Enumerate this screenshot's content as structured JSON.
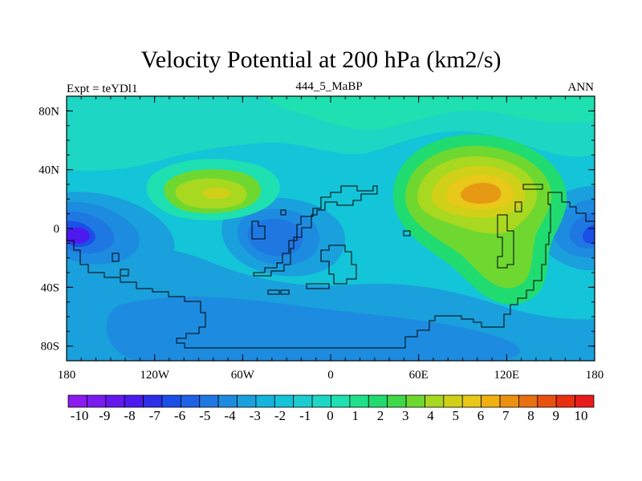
{
  "title": "Velocity Potential at 200 hPa (km2/s)",
  "left_label": "Expt = teYDl1",
  "center_label": "444_5_MaBP",
  "right_label": "ANN",
  "axes": {
    "x_ticks": [
      "180",
      "120W",
      "60W",
      "0",
      "60E",
      "120E",
      "180"
    ],
    "x_values": [
      -180,
      -120,
      -60,
      0,
      60,
      120,
      180
    ],
    "y_ticks": [
      "80N",
      "40N",
      "0",
      "40S",
      "80S"
    ],
    "y_values": [
      80,
      40,
      0,
      -40,
      -80
    ],
    "lon_range": [
      -180,
      180
    ],
    "lat_range": [
      -90,
      90
    ]
  },
  "colorbar": {
    "labels": [
      "-10",
      "-9",
      "-8",
      "-7",
      "-6",
      "-5",
      "-4",
      "-3",
      "-2",
      "-1",
      "0",
      "1",
      "2",
      "3",
      "4",
      "5",
      "6",
      "7",
      "8",
      "9",
      "10"
    ],
    "colors": [
      "#8a1cf0",
      "#7a1cf0",
      "#6418ee",
      "#4c1aee",
      "#2e2ee8",
      "#1c4ee8",
      "#1f62e6",
      "#1f78e2",
      "#1d8ce0",
      "#1aa0dc",
      "#14b4dc",
      "#14c4d8",
      "#1cccd0",
      "#1ed6c4",
      "#1ee0b0",
      "#20e08c",
      "#20dc70",
      "#40d848",
      "#6ed830",
      "#a8d820",
      "#d0d018",
      "#e8c818",
      "#f0b010",
      "#ec9010",
      "#e87010",
      "#e85010",
      "#e83010",
      "#e81c1c"
    ]
  },
  "fill_colors": {
    "base": "#14c4d8",
    "neg1": "#1aa0dc",
    "neg2": "#1d8ce0",
    "neg3": "#1f78e2",
    "neg4": "#1c4ee8",
    "neg5": "#2e2ee8",
    "neg6": "#4c1aee",
    "pos1": "#1ed6c4",
    "pos2": "#1ee0b0",
    "pos3": "#20dc70",
    "pos4": "#6ed830",
    "pos5": "#a8d820",
    "pos6": "#d0d018",
    "pos7": "#e8c818",
    "pos8": "#f0b010",
    "pos9": "#e69a14"
  }
}
